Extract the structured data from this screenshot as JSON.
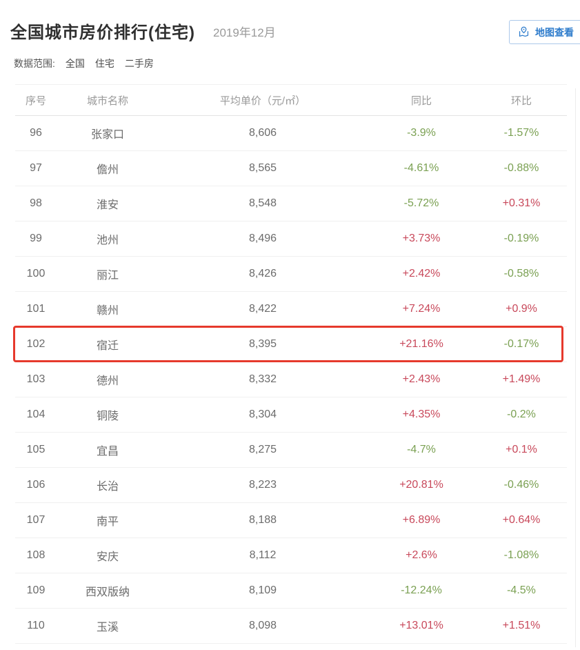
{
  "header": {
    "title": "全国城市房价排行(住宅)",
    "date": "2019年12月",
    "map_button_label": "地图查看"
  },
  "filters": {
    "label": "数据范围:",
    "items": [
      "全国",
      "住宅",
      "二手房"
    ]
  },
  "table": {
    "headers": [
      "序号",
      "城市名称",
      "平均单价（元/㎡）",
      "同比",
      "环比"
    ],
    "rows": [
      {
        "no": "96",
        "city": "张家口",
        "price": "8,606",
        "yoy": "-3.9%",
        "yoy_dir": "down",
        "mom": "-1.57%",
        "mom_dir": "down",
        "highlighted": false
      },
      {
        "no": "97",
        "city": "儋州",
        "price": "8,565",
        "yoy": "-4.61%",
        "yoy_dir": "down",
        "mom": "-0.88%",
        "mom_dir": "down",
        "highlighted": false
      },
      {
        "no": "98",
        "city": "淮安",
        "price": "8,548",
        "yoy": "-5.72%",
        "yoy_dir": "down",
        "mom": "+0.31%",
        "mom_dir": "up",
        "highlighted": false
      },
      {
        "no": "99",
        "city": "池州",
        "price": "8,496",
        "yoy": "+3.73%",
        "yoy_dir": "up",
        "mom": "-0.19%",
        "mom_dir": "down",
        "highlighted": false
      },
      {
        "no": "100",
        "city": "丽江",
        "price": "8,426",
        "yoy": "+2.42%",
        "yoy_dir": "up",
        "mom": "-0.58%",
        "mom_dir": "down",
        "highlighted": false
      },
      {
        "no": "101",
        "city": "赣州",
        "price": "8,422",
        "yoy": "+7.24%",
        "yoy_dir": "up",
        "mom": "+0.9%",
        "mom_dir": "up",
        "highlighted": false
      },
      {
        "no": "102",
        "city": "宿迁",
        "price": "8,395",
        "yoy": "+21.16%",
        "yoy_dir": "up",
        "mom": "-0.17%",
        "mom_dir": "down",
        "highlighted": true
      },
      {
        "no": "103",
        "city": "德州",
        "price": "8,332",
        "yoy": "+2.43%",
        "yoy_dir": "up",
        "mom": "+1.49%",
        "mom_dir": "up",
        "highlighted": false
      },
      {
        "no": "104",
        "city": "铜陵",
        "price": "8,304",
        "yoy": "+4.35%",
        "yoy_dir": "up",
        "mom": "-0.2%",
        "mom_dir": "down",
        "highlighted": false
      },
      {
        "no": "105",
        "city": "宜昌",
        "price": "8,275",
        "yoy": "-4.7%",
        "yoy_dir": "down",
        "mom": "+0.1%",
        "mom_dir": "up",
        "highlighted": false
      },
      {
        "no": "106",
        "city": "长治",
        "price": "8,223",
        "yoy": "+20.81%",
        "yoy_dir": "up",
        "mom": "-0.46%",
        "mom_dir": "down",
        "highlighted": false
      },
      {
        "no": "107",
        "city": "南平",
        "price": "8,188",
        "yoy": "+6.89%",
        "yoy_dir": "up",
        "mom": "+0.64%",
        "mom_dir": "up",
        "highlighted": false
      },
      {
        "no": "108",
        "city": "安庆",
        "price": "8,112",
        "yoy": "+2.6%",
        "yoy_dir": "up",
        "mom": "-1.08%",
        "mom_dir": "down",
        "highlighted": false
      },
      {
        "no": "109",
        "city": "西双版纳",
        "price": "8,109",
        "yoy": "-12.24%",
        "yoy_dir": "down",
        "mom": "-4.5%",
        "mom_dir": "down",
        "highlighted": false
      },
      {
        "no": "110",
        "city": "玉溪",
        "price": "8,098",
        "yoy": "+13.01%",
        "yoy_dir": "up",
        "mom": "+1.51%",
        "mom_dir": "up",
        "highlighted": false
      }
    ]
  },
  "colors": {
    "up": "#c8485a",
    "down": "#7aa052",
    "highlight_border": "#e6392c",
    "accent_blue": "#2e7ccc"
  }
}
